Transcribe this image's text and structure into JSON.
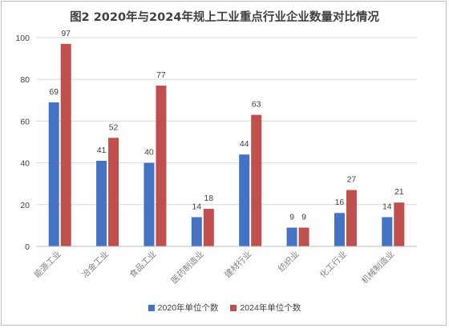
{
  "chart_data": {
    "type": "bar",
    "title": "图2 2020年与2024年规上工业重点行业企业数量对比情况",
    "categories": [
      "能源工业",
      "冶金工业",
      "食品工业",
      "医药制造业",
      "建材行业",
      "纺织业",
      "化工行业",
      "机械制造业"
    ],
    "series": [
      {
        "name": "2020年单位个数",
        "color": "#4472c4",
        "values": [
          69,
          41,
          40,
          14,
          44,
          9,
          16,
          14
        ]
      },
      {
        "name": "2024年单位个数",
        "color": "#c0504d",
        "values": [
          97,
          52,
          77,
          18,
          63,
          9,
          27,
          21
        ]
      }
    ],
    "ylim": [
      0,
      100
    ],
    "yticks": [
      0,
      20,
      40,
      60,
      80,
      100
    ],
    "grid": true,
    "legend_position": "bottom",
    "xlabel": "",
    "ylabel": ""
  }
}
